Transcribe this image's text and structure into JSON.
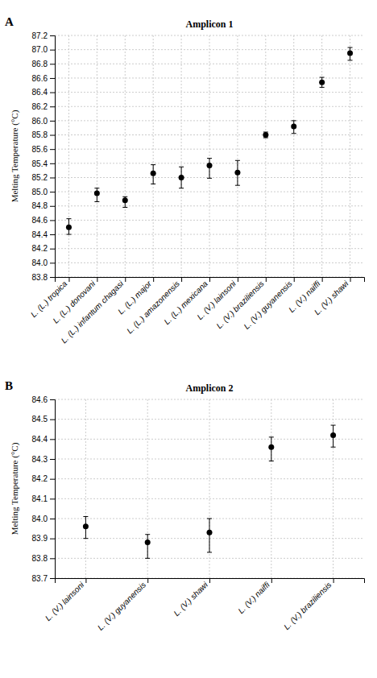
{
  "chart_data": [
    {
      "type": "errorbar",
      "title": "Amplicon 1",
      "annotation": "A",
      "ylabel": "Melting Temperature (°C)",
      "categories": [
        "L. (L.) tropica",
        "L. (L.) donovani",
        "L. (L.) infantum chagasi",
        "L. (L.) major",
        "L. (L.) amazonensis",
        "L. (L.) mexicana",
        "L. (V.) lainsoni",
        "L. (V.) braziliensis",
        "L. (V.) guyanensis",
        "L. (V.) naiffi",
        "L. (V.) shawi"
      ],
      "values": [
        84.5,
        84.98,
        84.88,
        85.26,
        85.2,
        85.37,
        85.27,
        85.8,
        85.92,
        86.54,
        86.95
      ],
      "err_low": [
        0.1,
        0.12,
        0.1,
        0.15,
        0.15,
        0.18,
        0.18,
        0.04,
        0.1,
        0.07,
        0.1
      ],
      "err_high": [
        0.12,
        0.07,
        0.05,
        0.12,
        0.15,
        0.1,
        0.17,
        0.04,
        0.08,
        0.07,
        0.08
      ],
      "color": "black",
      "ylim": [
        83.8,
        87.2
      ],
      "yticks": [
        83.8,
        {
          "value": 84,
          "label": "84.0"
        },
        84.2,
        84.4,
        84.6,
        84.8,
        {
          "value": 85,
          "label": "85.0"
        },
        85.2,
        85.4,
        85.6,
        85.8,
        {
          "value": 86,
          "label": "86.0"
        },
        86.2,
        86.4,
        86.6,
        86.8,
        {
          "value": 87,
          "label": "87.0"
        },
        87.2
      ],
      "grid": true
    },
    {
      "type": "errorbar",
      "title": "Amplicon 2",
      "annotation": "B",
      "ylabel": "Melting Temperature (°C)",
      "categories": [
        "L. (V.) lainsoni",
        "L. (V.) guyanensis",
        "L. (V.) shawi",
        "L. (V.) naiffi",
        "L. (V.) braziliensis"
      ],
      "values": [
        83.96,
        83.88,
        83.93,
        84.36,
        84.42
      ],
      "err_low": [
        0.06,
        0.08,
        0.1,
        0.07,
        0.06
      ],
      "err_high": [
        0.05,
        0.04,
        0.07,
        0.05,
        0.05
      ],
      "color": "black",
      "ylim": [
        83.7,
        84.6
      ],
      "yticks": [
        83.7,
        83.8,
        83.9,
        {
          "value": 84,
          "label": "84.0"
        },
        84.1,
        84.2,
        84.3,
        84.4,
        84.5,
        84.6
      ],
      "grid": true
    }
  ]
}
